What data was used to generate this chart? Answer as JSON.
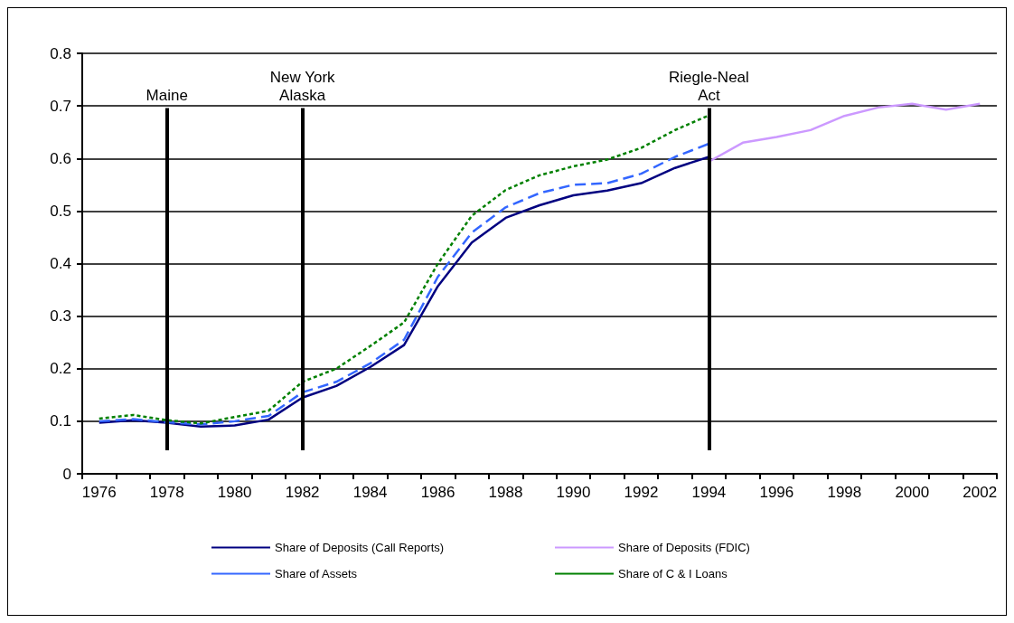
{
  "chart_data": {
    "type": "line",
    "categories": [
      "1976",
      null,
      "1978",
      null,
      "1980",
      null,
      "1982",
      null,
      "1984",
      null,
      "1986",
      null,
      "1988",
      null,
      "1990",
      null,
      "1992",
      null,
      "1994",
      null,
      "1996",
      null,
      "1998",
      null,
      "2000",
      null,
      "2002"
    ],
    "series": [
      {
        "name": "Share of Deposits (Call Reports)",
        "color": "#000080",
        "line_style": "solid",
        "values": [
          0.097,
          0.102,
          0.097,
          0.09,
          0.092,
          0.103,
          0.145,
          0.167,
          0.203,
          0.245,
          0.357,
          0.44,
          0.487,
          0.511,
          0.53,
          0.539,
          0.553,
          0.582,
          0.603,
          null,
          null,
          null,
          null,
          null,
          null,
          null,
          null
        ]
      },
      {
        "name": "Share of Deposits (FDIC)",
        "color": "#cc99ff",
        "line_style": "solid",
        "values": [
          null,
          null,
          null,
          null,
          null,
          null,
          null,
          null,
          null,
          null,
          null,
          null,
          null,
          null,
          null,
          null,
          null,
          null,
          0.594,
          0.63,
          0.641,
          0.654,
          0.681,
          0.697,
          0.704,
          0.693,
          0.704
        ]
      },
      {
        "name": "Share of Assets",
        "color": "#3366ff",
        "line_style": "dashed",
        "values": [
          0.1,
          0.104,
          0.098,
          0.094,
          0.1,
          0.11,
          0.155,
          0.175,
          0.21,
          0.255,
          0.375,
          0.459,
          0.507,
          0.534,
          0.55,
          0.553,
          0.571,
          0.603,
          0.628,
          null,
          null,
          null,
          null,
          null,
          null,
          null,
          null
        ]
      },
      {
        "name": "Share of C & I Loans",
        "color": "#008000",
        "line_style": "dotted",
        "values": [
          0.105,
          0.112,
          0.102,
          0.096,
          0.108,
          0.12,
          0.175,
          0.2,
          0.243,
          0.288,
          0.4,
          0.491,
          0.54,
          0.568,
          0.585,
          0.598,
          0.62,
          0.654,
          0.682,
          null,
          null,
          null,
          null,
          null,
          null,
          null,
          null
        ]
      }
    ],
    "ylim": [
      0,
      0.8
    ],
    "yticks": [
      0,
      0.1,
      0.2,
      0.3,
      0.4,
      0.5,
      0.6,
      0.7,
      0.8
    ],
    "grid": "y",
    "legend": "bottom",
    "marker": "none",
    "ref_lines": [
      {
        "axis": "x",
        "value": "1978",
        "label": "Maine",
        "color": "#000000"
      },
      {
        "axis": "x",
        "value": "1982",
        "label": "New York\nAlaska",
        "color": "#000000"
      },
      {
        "axis": "x",
        "value": "1994",
        "label": "Riegle-Neal\nAct",
        "color": "#000000"
      }
    ]
  }
}
